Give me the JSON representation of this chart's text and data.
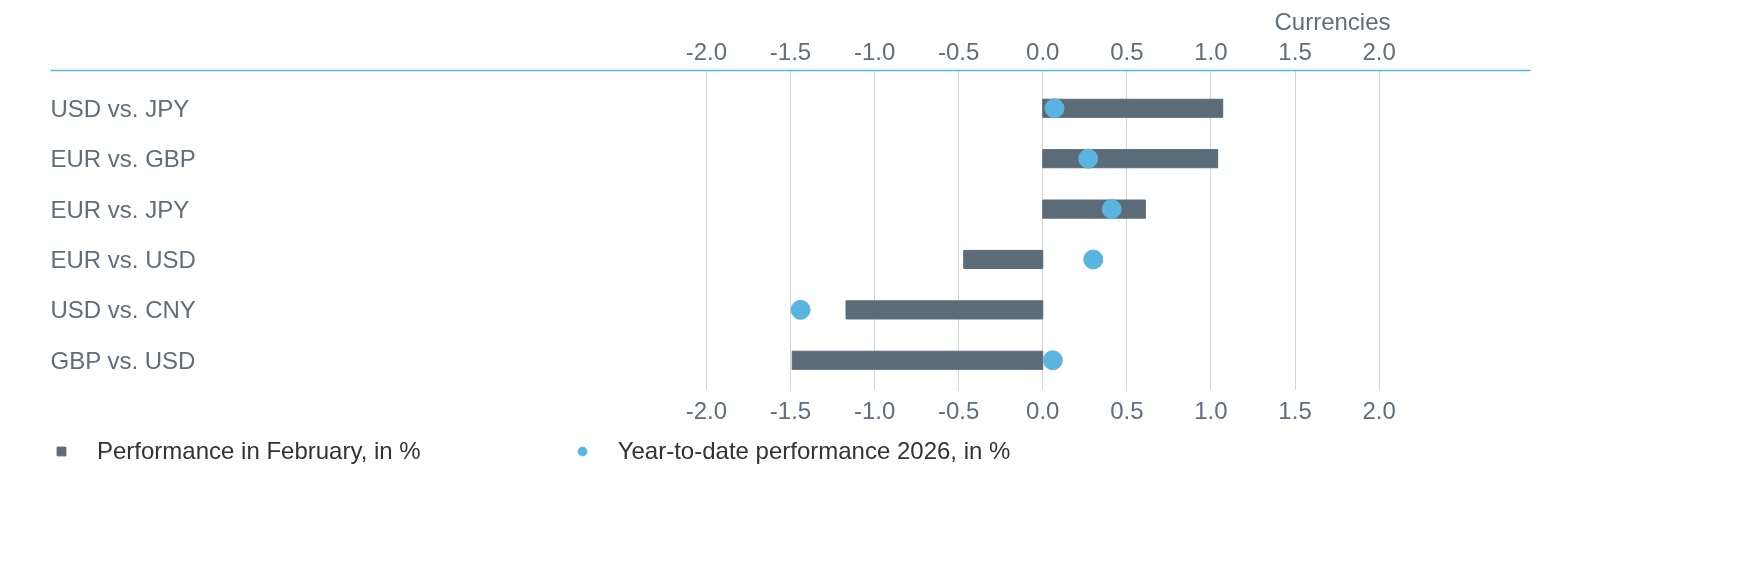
{
  "chart_data": {
    "type": "bar",
    "orientation": "horizontal",
    "categories": [
      "USD vs. JPY",
      "EUR vs. GBP",
      "EUR vs. JPY",
      "EUR vs. USD",
      "USD vs. CNY",
      "GBP vs. USD"
    ],
    "series": [
      {
        "name": "Performance in February, in %",
        "color": "#5b6b77",
        "values": [
          1.07,
          1.04,
          0.61,
          -0.47,
          -1.17,
          -1.49
        ]
      },
      {
        "name": "Year-to-date performance 2026, in %",
        "type": "scatter",
        "color": "#5ab4e0",
        "marker": "circle",
        "values": [
          0.07,
          0.27,
          0.41,
          0.3,
          -1.44,
          0.06
        ]
      }
    ],
    "xlim": [
      -5.9,
      2.9
    ],
    "xticks": [
      {
        "value": -2,
        "label": "-2.0"
      },
      {
        "value": -1.5,
        "label": "-1.5"
      },
      {
        "value": -1,
        "label": "-1.0"
      },
      {
        "value": -0.5,
        "label": "-0.5"
      },
      {
        "value": 0,
        "label": "0.0"
      },
      {
        "value": 0.5,
        "label": "0.5"
      },
      {
        "value": 1,
        "label": "1.0"
      },
      {
        "value": 1.5,
        "label": "1.5"
      },
      {
        "value": 2,
        "label": "2.0"
      }
    ],
    "x2lim": [
      -5.9,
      2.9
    ],
    "x2ticks": [
      {
        "value": -2,
        "label": "-2.0"
      },
      {
        "value": -1.5,
        "label": "-1.5"
      },
      {
        "value": -1,
        "label": "-1.0"
      },
      {
        "value": -0.5,
        "label": "-0.5"
      },
      {
        "value": 0,
        "label": "0.0"
      },
      {
        "value": 0.5,
        "label": "0.5"
      },
      {
        "value": 1,
        "label": "1.0"
      },
      {
        "value": 1.5,
        "label": "1.5"
      },
      {
        "value": 2,
        "label": "2.0"
      }
    ],
    "annotations": [
      "Currencies"
    ],
    "grid": "x",
    "legend": "bottom"
  }
}
